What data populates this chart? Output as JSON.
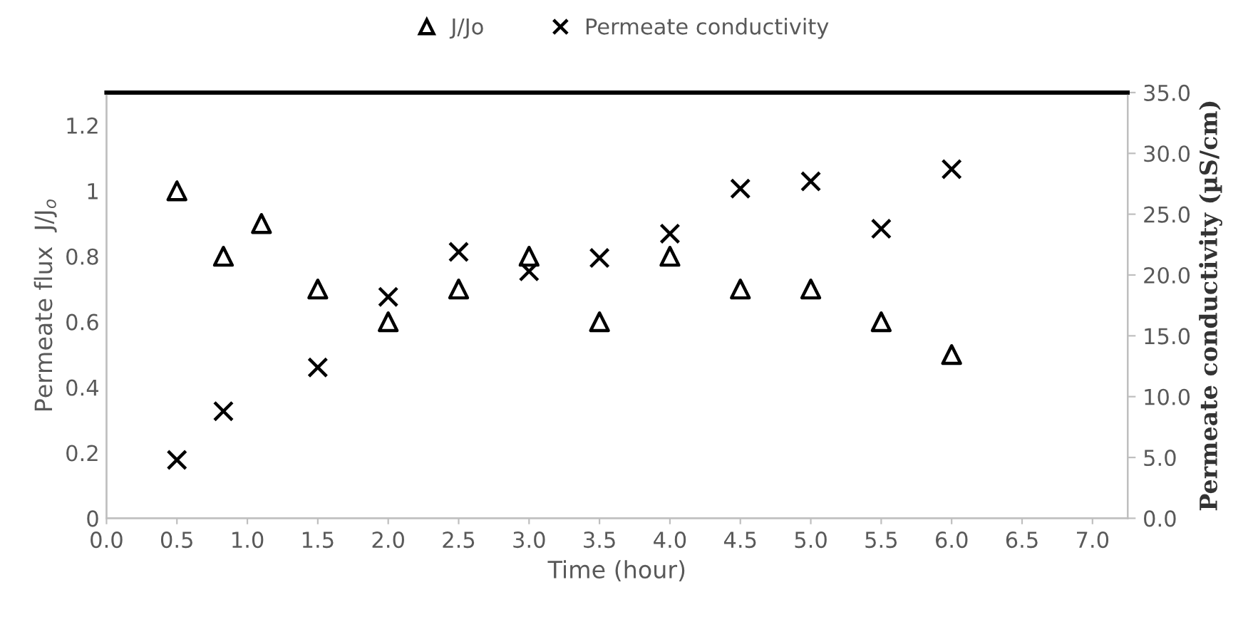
{
  "chart_data": {
    "type": "scatter",
    "xlabel": "Time (hour)",
    "ylabel": "Permeate flux  J/J$_{o}$",
    "y2label": "Permeate conductivity (µS/cm)",
    "series": [
      {
        "name": "J/Jo",
        "color": "#000000",
        "marker": "triangle",
        "x": [
          0.5,
          0.83,
          1.1,
          1.5,
          2.0,
          2.5,
          3.0,
          3.5,
          4.0,
          4.5,
          5.0,
          5.5,
          6.0
        ],
        "values": [
          1.0,
          0.8,
          0.9,
          0.7,
          0.6,
          0.7,
          0.8,
          0.6,
          0.8,
          0.7,
          0.7,
          0.6,
          0.5
        ]
      },
      {
        "name": "Permeate conductivity",
        "color": "#000000",
        "marker": "cross",
        "axis": "y2",
        "x": [
          0.5,
          0.83,
          1.5,
          2.0,
          2.5,
          3.0,
          3.5,
          4.0,
          4.5,
          5.0,
          5.5,
          6.0
        ],
        "values": [
          4.8,
          8.8,
          12.4,
          18.2,
          21.9,
          20.3,
          21.4,
          23.4,
          27.1,
          27.7,
          23.8,
          28.7
        ]
      }
    ],
    "xlim": [
      0,
      7.25
    ],
    "xticks": [
      {
        "value": 0,
        "label": "0.0"
      },
      0.5,
      {
        "value": 1,
        "label": "1.0"
      },
      1.5,
      {
        "value": 2,
        "label": "2.0"
      },
      2.5,
      {
        "value": 3,
        "label": "3.0"
      },
      3.5,
      {
        "value": 4,
        "label": "4.0"
      },
      4.5,
      {
        "value": 5,
        "label": "5.0"
      },
      5.5,
      {
        "value": 6,
        "label": "6.0"
      },
      6.5,
      {
        "value": 7,
        "label": "7.0"
      }
    ],
    "ylim": [
      0,
      1.3
    ],
    "yticks": [
      0,
      0.2,
      0.4,
      0.6,
      0.8,
      1,
      1.2
    ],
    "y2lim": [
      0,
      35
    ],
    "y2ticks": [
      {
        "value": 0,
        "label": "0.0"
      },
      {
        "value": 5,
        "label": "5.0"
      },
      {
        "value": 10,
        "label": "10.0"
      },
      {
        "value": 15,
        "label": "15.0"
      },
      {
        "value": 20,
        "label": "20.0"
      },
      {
        "value": 25,
        "label": "25.0"
      },
      {
        "value": 30,
        "label": "30.0"
      },
      {
        "value": 35,
        "label": "35.0"
      }
    ],
    "grid": false,
    "legend": "top"
  }
}
